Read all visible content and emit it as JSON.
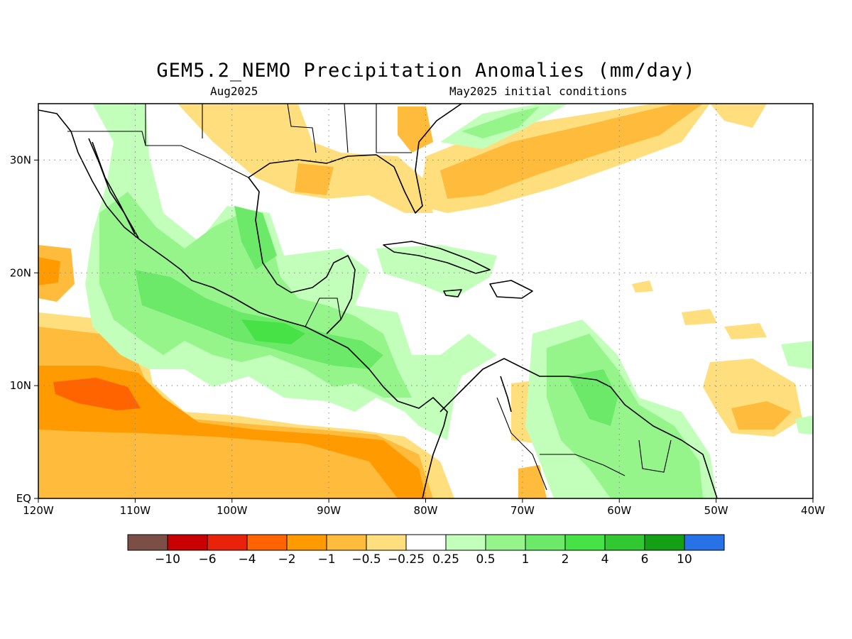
{
  "title": "GEM5.2_NEMO Precipitation Anomalies (mm/day)",
  "subtitle_left": "Aug2025",
  "subtitle_right": "May2025 initial conditions",
  "lon_labels": [
    "120W",
    "110W",
    "100W",
    "90W",
    "80W",
    "70W",
    "60W",
    "50W",
    "40W"
  ],
  "lat_labels": [
    "EQ",
    "10N",
    "20N",
    "30N"
  ],
  "lon_values": [
    -120,
    -110,
    -100,
    -90,
    -80,
    -70,
    -60,
    -50,
    -40
  ],
  "lat_values": [
    0,
    10,
    20,
    30
  ],
  "map_extent": {
    "lon": [
      -120,
      -40
    ],
    "lat": [
      0,
      35
    ]
  },
  "colorbar": {
    "colors": [
      "#7b4f45",
      "#c80000",
      "#e8230a",
      "#ff6400",
      "#ff9b00",
      "#ffbc3c",
      "#ffdf7d",
      "#ffffff",
      "#c1ffba",
      "#95f58b",
      "#6de96a",
      "#46e246",
      "#32c832",
      "#14a014",
      "#2672e6"
    ],
    "labels": [
      "−10",
      "−6",
      "−4",
      "−2",
      "−1",
      "−0.5",
      "−0.25",
      "0.25",
      "0.5",
      "1",
      "2",
      "4",
      "6",
      "10"
    ]
  }
}
